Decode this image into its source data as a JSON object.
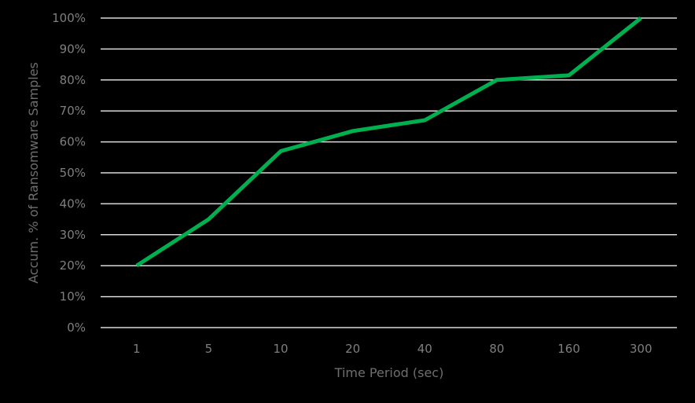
{
  "chart_data": {
    "type": "line",
    "title": "",
    "xlabel": "Time Period (sec)",
    "ylabel": "Accum. % of Ransomware Samples",
    "categories": [
      "1",
      "5",
      "10",
      "20",
      "40",
      "80",
      "160",
      "300"
    ],
    "series": [
      {
        "name": "Accum. % of Ransomware Samples",
        "color": "#00b050",
        "values": [
          20,
          35,
          57,
          63.5,
          67,
          80,
          81.5,
          100
        ]
      }
    ],
    "yticks": [
      "0%",
      "10%",
      "20%",
      "30%",
      "40%",
      "50%",
      "60%",
      "70%",
      "80%",
      "90%",
      "100%"
    ],
    "ylim": [
      0,
      100
    ],
    "grid": true,
    "legend": "none"
  },
  "colors": {
    "background": "#000000",
    "gridline": "#d9d9d9",
    "line": "#00b050",
    "text": "#7f7f7f"
  }
}
